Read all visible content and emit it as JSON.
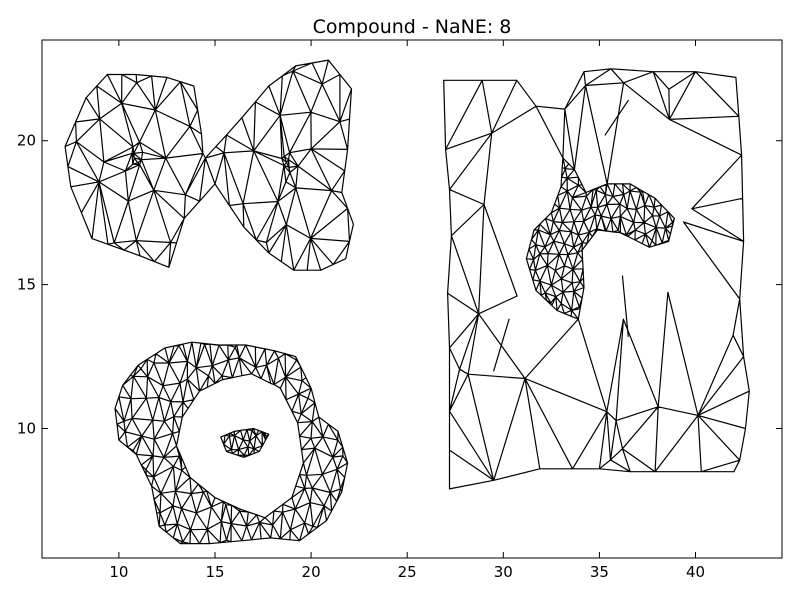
{
  "chart_data": {
    "type": "triangle-mesh",
    "title": "Compound - NaNE: 8",
    "xlabel": "",
    "ylabel": "",
    "xlim": [
      6,
      44.5
    ],
    "ylim": [
      5.5,
      23.5
    ],
    "xticks": [
      10,
      15,
      20,
      25,
      30,
      35,
      40
    ],
    "yticks": [
      10,
      15,
      20
    ],
    "grid": false,
    "legend": "none",
    "components": [
      {
        "name": "two-lobe-blob",
        "outer_boundary": [
          [
            7.2,
            19.8
          ],
          [
            8.3,
            21.5
          ],
          [
            9.4,
            22.3
          ],
          [
            10.9,
            22.3
          ],
          [
            12.5,
            22.2
          ],
          [
            13.9,
            21.9
          ],
          [
            14.5,
            19.4
          ],
          [
            15.6,
            20.2
          ],
          [
            16.4,
            20.8
          ],
          [
            17.8,
            21.9
          ],
          [
            19.2,
            22.6
          ],
          [
            20.9,
            22.8
          ],
          [
            22.1,
            21.8
          ],
          [
            21.9,
            19.7
          ],
          [
            21.6,
            18.2
          ],
          [
            22.2,
            17.1
          ],
          [
            21.8,
            15.9
          ],
          [
            20.5,
            15.5
          ],
          [
            19.1,
            15.5
          ],
          [
            17.8,
            16.1
          ],
          [
            16.5,
            17.0
          ],
          [
            15.0,
            18.5
          ],
          [
            13.4,
            17.3
          ],
          [
            12.6,
            15.6
          ],
          [
            11.1,
            16.0
          ],
          [
            8.6,
            16.6
          ],
          [
            7.5,
            18.4
          ]
        ],
        "dense_points": [
          [
            10.8,
            19.4
          ],
          [
            18.9,
            18.9
          ]
        ]
      },
      {
        "name": "ring-with-island",
        "outer_boundary": [
          [
            10.2,
            11.5
          ],
          [
            11.0,
            12.2
          ],
          [
            12.4,
            12.8
          ],
          [
            13.8,
            13.0
          ],
          [
            15.2,
            12.9
          ],
          [
            16.6,
            12.9
          ],
          [
            18.1,
            12.7
          ],
          [
            19.2,
            12.5
          ],
          [
            20.0,
            11.4
          ],
          [
            20.4,
            10.4
          ],
          [
            21.4,
            9.9
          ],
          [
            21.9,
            8.8
          ],
          [
            21.6,
            7.8
          ],
          [
            20.8,
            6.8
          ],
          [
            19.4,
            6.1
          ],
          [
            17.9,
            6.2
          ],
          [
            16.4,
            6.1
          ],
          [
            14.7,
            6.0
          ],
          [
            13.2,
            6.0
          ],
          [
            12.1,
            6.6
          ],
          [
            11.7,
            8.0
          ],
          [
            10.9,
            9.1
          ],
          [
            10.0,
            9.6
          ],
          [
            9.8,
            10.7
          ]
        ],
        "inner_hole": [
          [
            13.3,
            10.4
          ],
          [
            14.2,
            11.3
          ],
          [
            15.4,
            11.7
          ],
          [
            16.9,
            11.9
          ],
          [
            18.4,
            11.4
          ],
          [
            19.3,
            10.2
          ],
          [
            19.6,
            8.8
          ],
          [
            19.0,
            7.6
          ],
          [
            17.6,
            6.9
          ],
          [
            16.3,
            7.2
          ],
          [
            15.0,
            7.6
          ],
          [
            13.7,
            8.3
          ],
          [
            13.0,
            9.4
          ]
        ],
        "island": [
          [
            15.3,
            9.7
          ],
          [
            16.0,
            9.9
          ],
          [
            17.0,
            10.0
          ],
          [
            17.8,
            9.8
          ],
          [
            17.3,
            9.2
          ],
          [
            16.5,
            9.0
          ],
          [
            15.6,
            9.2
          ]
        ]
      },
      {
        "name": "rectangle-with-crescent",
        "outer_boundary": [
          [
            26.9,
            22.1
          ],
          [
            28.9,
            22.1
          ],
          [
            30.7,
            22.1
          ],
          [
            31.7,
            21.2
          ],
          [
            33.2,
            21.1
          ],
          [
            34.2,
            22.4
          ],
          [
            35.6,
            22.5
          ],
          [
            37.8,
            22.4
          ],
          [
            40.0,
            22.4
          ],
          [
            42.1,
            22.2
          ],
          [
            42.4,
            19.5
          ],
          [
            42.5,
            16.5
          ],
          [
            42.3,
            14.5
          ],
          [
            42.5,
            12.5
          ],
          [
            42.8,
            11.3
          ],
          [
            42.6,
            10.0
          ],
          [
            42.3,
            8.9
          ],
          [
            42.0,
            8.5
          ],
          [
            40.3,
            8.5
          ],
          [
            37.9,
            8.5
          ],
          [
            36.6,
            8.5
          ],
          [
            35.0,
            8.6
          ],
          [
            33.6,
            8.6
          ],
          [
            31.9,
            8.6
          ],
          [
            29.5,
            8.2
          ],
          [
            27.2,
            7.9
          ],
          [
            27.2,
            10.6
          ],
          [
            27.2,
            12.8
          ],
          [
            27.1,
            14.7
          ],
          [
            27.3,
            16.7
          ],
          [
            27.2,
            18.3
          ],
          [
            27.0,
            19.7
          ]
        ],
        "crescent": [
          [
            33.1,
            19.4
          ],
          [
            33.7,
            19.0
          ],
          [
            34.3,
            18.2
          ],
          [
            35.4,
            18.5
          ],
          [
            36.6,
            18.5
          ],
          [
            37.9,
            18.0
          ],
          [
            38.9,
            17.3
          ],
          [
            38.6,
            16.5
          ],
          [
            37.6,
            16.3
          ],
          [
            36.1,
            16.8
          ],
          [
            34.9,
            16.9
          ],
          [
            34.1,
            16.2
          ],
          [
            34.2,
            14.9
          ],
          [
            33.9,
            13.8
          ],
          [
            32.8,
            14.1
          ],
          [
            31.7,
            14.8
          ],
          [
            31.2,
            15.9
          ],
          [
            31.6,
            16.9
          ],
          [
            32.5,
            17.5
          ],
          [
            33.0,
            18.4
          ]
        ],
        "dangling_segments": [
          [
            [
              35.3,
              20.2
            ],
            [
              36.5,
              21.4
            ]
          ],
          [
            [
              36.2,
              15.3
            ],
            [
              36.5,
              13.2
            ]
          ],
          [
            [
              30.3,
              13.8
            ],
            [
              29.5,
              12.0
            ]
          ]
        ]
      }
    ]
  }
}
